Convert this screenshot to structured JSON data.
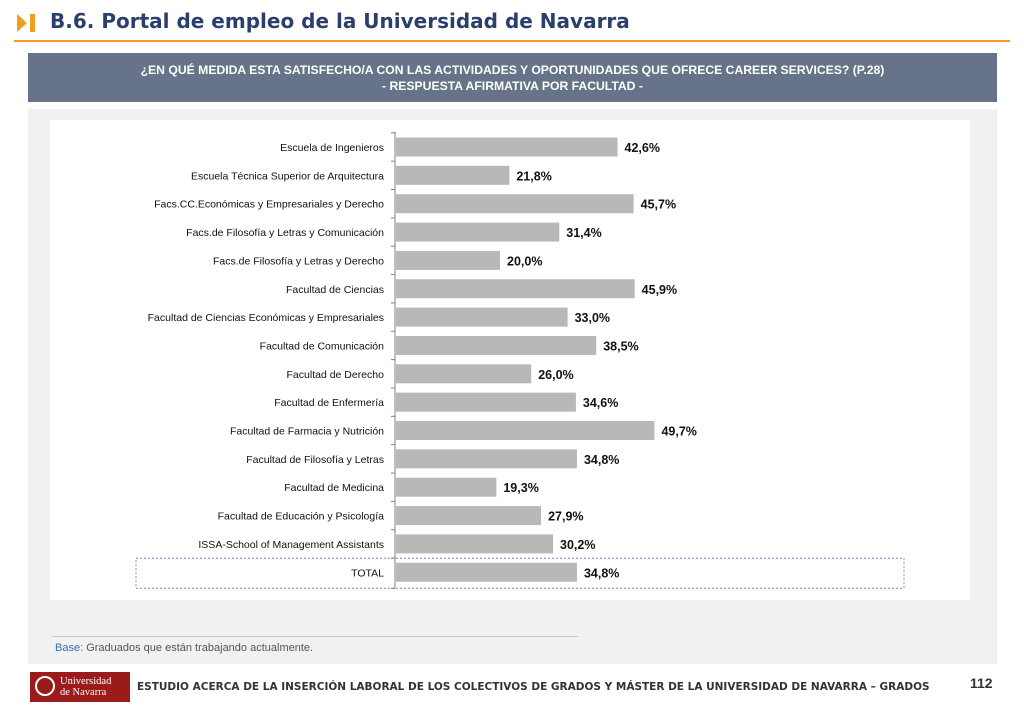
{
  "header": {
    "title": "B.6. Portal de empleo de la Universidad de Navarra",
    "accent_color": "#f0a020",
    "icon": "chevron-bar-icon"
  },
  "banner": {
    "line1": "¿EN QUÉ MEDIDA ESTA SATISFECHO/A CON LAS ACTIVIDADES Y OPORTUNIDADES QUE OFRECE CAREER SERVICES? (P.28)",
    "line2": "- RESPUESTA AFIRMATIVA POR FACULTAD -"
  },
  "chart_data": {
    "type": "bar",
    "orientation": "horizontal",
    "categories": [
      "Escuela de Ingenieros",
      "Escuela Técnica Superior de Arquitectura",
      "Facs.CC.Económicas y Empresariales y Derecho",
      "Facs.de Filosofía y Letras y Comunicación",
      "Facs.de Filosofía y Letras y Derecho",
      "Facultad de Ciencias",
      "Facultad de Ciencias Económicas y Empresariales",
      "Facultad de Comunicación",
      "Facultad de Derecho",
      "Facultad de Enfermería",
      "Facultad de Farmacia y Nutrición",
      "Facultad de Filosofía y Letras",
      "Facultad de Medicina",
      "Facultad de Educación y Psicología",
      "ISSA-School of Management Assistants",
      "TOTAL"
    ],
    "values": [
      42.6,
      21.8,
      45.7,
      31.4,
      20.0,
      45.9,
      33.0,
      38.5,
      26.0,
      34.6,
      49.7,
      34.8,
      19.3,
      27.9,
      30.2,
      34.8
    ],
    "value_labels": [
      "42,6%",
      "21,8%",
      "45,7%",
      "31,4%",
      "20,0%",
      "45,9%",
      "33,0%",
      "38,5%",
      "26,0%",
      "34,6%",
      "49,7%",
      "34,8%",
      "19,3%",
      "27,9%",
      "30,2%",
      "34,8%"
    ],
    "xlim": [
      0,
      100
    ],
    "grid": false,
    "legend": "none",
    "bar_color": "#b8b8b8",
    "highlighted_category": "TOTAL"
  },
  "base_note": {
    "label": "Base:",
    "text": " Graduados que están trabajando actualmente."
  },
  "footer": {
    "logo_line1": "Universidad",
    "logo_line2": "de Navarra",
    "text": "ESTUDIO ACERCA DE LA INSERCIÓN LABORAL DE LOS COLECTIVOS DE GRADOS Y MÁSTER DE LA UNIVERSIDAD DE NAVARRA – GRADOS",
    "page_number": "112",
    "brand_color": "#9b1b1b"
  }
}
